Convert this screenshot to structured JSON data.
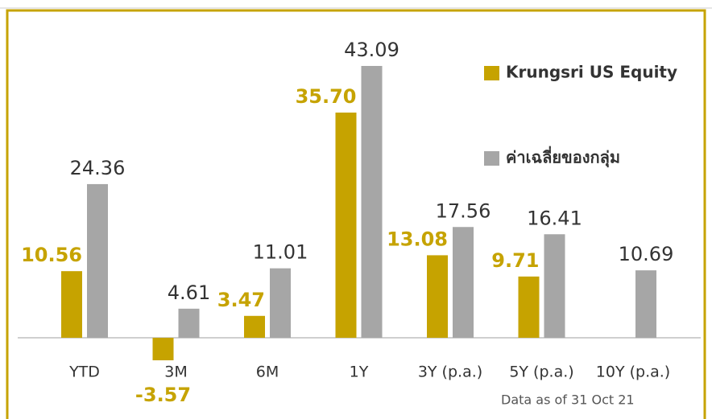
{
  "chart_data": {
    "type": "bar",
    "categories": [
      "YTD",
      "3M",
      "6M",
      "1Y",
      "3Y (p.a.)",
      "5Y (p.a.)",
      "10Y (p.a.)"
    ],
    "series": [
      {
        "name": "Krungsri US Equity",
        "color": "#c6a300",
        "values": [
          10.56,
          -3.57,
          3.47,
          35.7,
          13.08,
          9.71,
          null
        ],
        "value_labels": [
          "10.56",
          "-3.57",
          "3.47",
          "35.70",
          "13.08",
          "9.71",
          null
        ]
      },
      {
        "name": "ค่าเฉลี่ยของกลุ่ม",
        "color": "#a6a6a6",
        "values": [
          24.36,
          4.61,
          11.01,
          43.09,
          17.56,
          16.41,
          10.69
        ]
      }
    ],
    "note": "Data as of 31 Oct 21"
  }
}
